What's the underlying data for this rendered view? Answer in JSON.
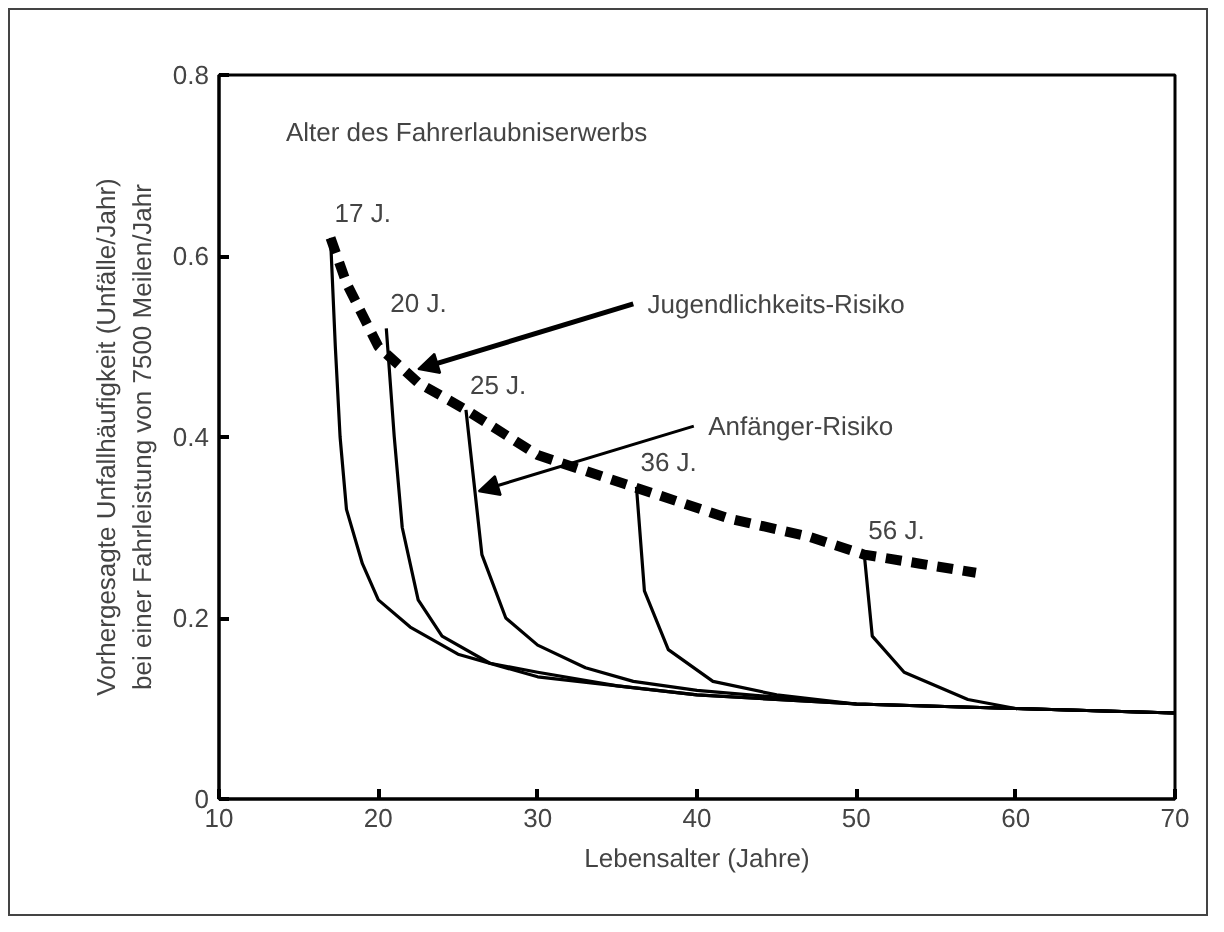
{
  "chart_data": {
    "type": "line",
    "xlabel": "Lebensalter (Jahre)",
    "ylabel": "Vorhergesagte Unfallhäufigkeit (Unfälle/Jahr)\nbei einer Fahrleistung von 7500 Meilen/Jahr",
    "xlim": [
      10,
      70
    ],
    "xticks": [
      10,
      20,
      30,
      40,
      50,
      60,
      70
    ],
    "ylim": [
      0,
      0.8
    ],
    "yticks": [
      0,
      0.2,
      0.4,
      0.6,
      0.8
    ],
    "grid": false,
    "marker": "none",
    "series": [
      {
        "color": "#000000",
        "line_style": "solid",
        "x": [
          17,
          17.3,
          17.6,
          18,
          19,
          20,
          22,
          25,
          30,
          35,
          40,
          50,
          60,
          70
        ],
        "values": [
          0.62,
          0.5,
          0.4,
          0.32,
          0.26,
          0.22,
          0.19,
          0.16,
          0.135,
          0.125,
          0.115,
          0.105,
          0.1,
          0.095
        ]
      },
      {
        "color": "#000000",
        "line_style": "solid",
        "x": [
          20.5,
          21,
          21.5,
          22.5,
          24,
          27,
          30,
          35,
          40,
          50,
          60,
          70
        ],
        "values": [
          0.52,
          0.4,
          0.3,
          0.22,
          0.18,
          0.15,
          0.14,
          0.125,
          0.115,
          0.105,
          0.1,
          0.095
        ]
      },
      {
        "color": "#000000",
        "line_style": "solid",
        "x": [
          25.5,
          26,
          26.5,
          28,
          30,
          33,
          36,
          40,
          50,
          60,
          70
        ],
        "values": [
          0.43,
          0.35,
          0.27,
          0.2,
          0.17,
          0.145,
          0.13,
          0.12,
          0.105,
          0.1,
          0.095
        ]
      },
      {
        "color": "#000000",
        "line_style": "solid",
        "x": [
          36.2,
          36.7,
          38.2,
          41,
          45,
          50,
          60,
          70
        ],
        "values": [
          0.345,
          0.23,
          0.165,
          0.13,
          0.115,
          0.105,
          0.1,
          0.095
        ]
      },
      {
        "color": "#000000",
        "line_style": "solid",
        "x": [
          50.5,
          51,
          53,
          57,
          60,
          70
        ],
        "values": [
          0.27,
          0.18,
          0.14,
          0.11,
          0.1,
          0.095
        ]
      },
      {
        "color": "#000000",
        "line_style": "dashed",
        "x": [
          17,
          18,
          20,
          22.5,
          25.5,
          30,
          36,
          42,
          47,
          50.5,
          54,
          57.5
        ],
        "values": [
          0.62,
          0.57,
          0.5,
          0.46,
          0.43,
          0.38,
          0.345,
          0.31,
          0.29,
          0.27,
          0.26,
          0.25
        ]
      }
    ],
    "annotations": [
      "Alter des Fahrerlaubniserwerbs",
      {
        "text": "17 J.",
        "x": 17,
        "y": 0.62
      },
      {
        "text": "20 J.",
        "x": 20.5,
        "y": 0.52
      },
      {
        "text": "25 J.",
        "x": 25.5,
        "y": 0.43
      },
      {
        "text": "36 J.",
        "x": 36.2,
        "y": 0.345
      },
      {
        "text": "56 J.",
        "x": 50.5,
        "y": 0.27
      },
      {
        "text": "Jugendlichkeits-Risiko",
        "x": 22.5,
        "y": 0.475
      },
      {
        "text": "Anfänger-Risiko",
        "x": 26.3,
        "y": 0.34
      }
    ]
  }
}
